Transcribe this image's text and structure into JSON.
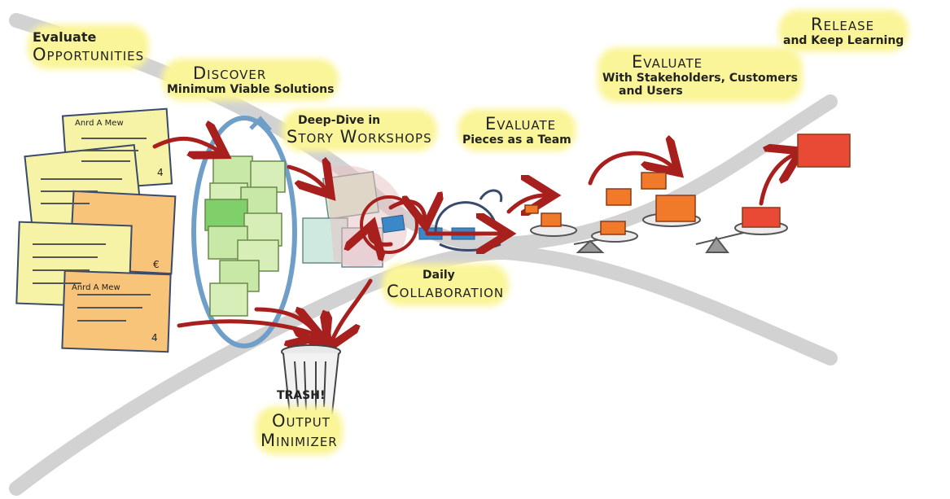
{
  "steps": {
    "evaluate_opportunities": {
      "line1": "Evaluate",
      "line2": "Opportunities"
    },
    "discover": {
      "title": "Discover",
      "subtitle": "Minimum Viable Solutions"
    },
    "story_workshops": {
      "line1": "Deep-Dive in",
      "line2": "Story Workshops"
    },
    "evaluate_team": {
      "title": "Evaluate",
      "subtitle": "Pieces as a Team"
    },
    "daily_collaboration": {
      "line1": "Daily",
      "line2": "Collaboration"
    },
    "evaluate_stakeholders": {
      "title": "Evaluate",
      "line1": "With Stakeholders, Customers",
      "line2": "and Users"
    },
    "release": {
      "title": "Release",
      "subtitle": "and Keep Learning"
    },
    "trash": {
      "label": "TRASH!",
      "line1": "Output",
      "line2": "Minimizer"
    }
  },
  "card_text": {
    "title": "Anrd A Mew",
    "number": "4",
    "euro": "€"
  },
  "colors": {
    "highlight": "#fbf59a",
    "card_yellow": "#f6f3a6",
    "card_orange": "#f8c47a",
    "sticky_green": "#c8e8a8",
    "sticky_dark": "#7fcf6a",
    "arrow_red": "#a8201e",
    "loop_blue": "#6f9ec8",
    "lego": "#f07a2a",
    "lego_red": "#e84a36",
    "funnel_gray": "#d2d2d2"
  }
}
